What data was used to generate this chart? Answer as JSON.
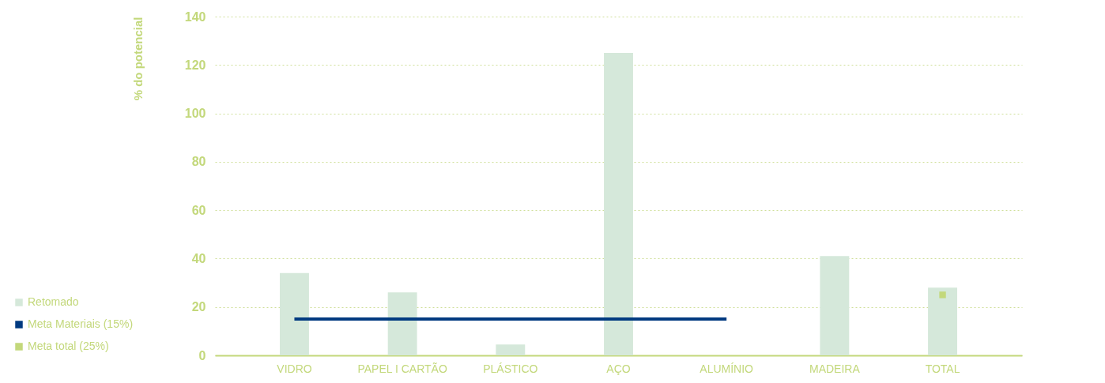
{
  "chart_data": {
    "type": "bar",
    "ylabel": "% do potencial",
    "categories": [
      "VIDRO",
      "PAPEL I CARTÃO",
      "PLÁSTICO",
      "AÇO",
      "ALUMÍNIO",
      "MADEIRA",
      "TOTAL"
    ],
    "series": [
      {
        "name": "Retomado",
        "color": "#d5e8da",
        "values": [
          34,
          26,
          4.5,
          125,
          0,
          41,
          28
        ]
      },
      {
        "name": "Meta Materiais (15%)",
        "type": "line",
        "color": "#003a80",
        "values": [
          15,
          15,
          15,
          15,
          15,
          null,
          null
        ]
      },
      {
        "name": "Meta total (25%)",
        "type": "scatter",
        "color": "#c3d87b",
        "values": [
          null,
          null,
          null,
          null,
          null,
          null,
          25
        ]
      }
    ],
    "ylim": [
      0,
      140
    ],
    "yticks": [
      0,
      20,
      40,
      60,
      80,
      100,
      120,
      140
    ],
    "grid": "y",
    "legend": "bottom left",
    "line_style": "solid"
  }
}
